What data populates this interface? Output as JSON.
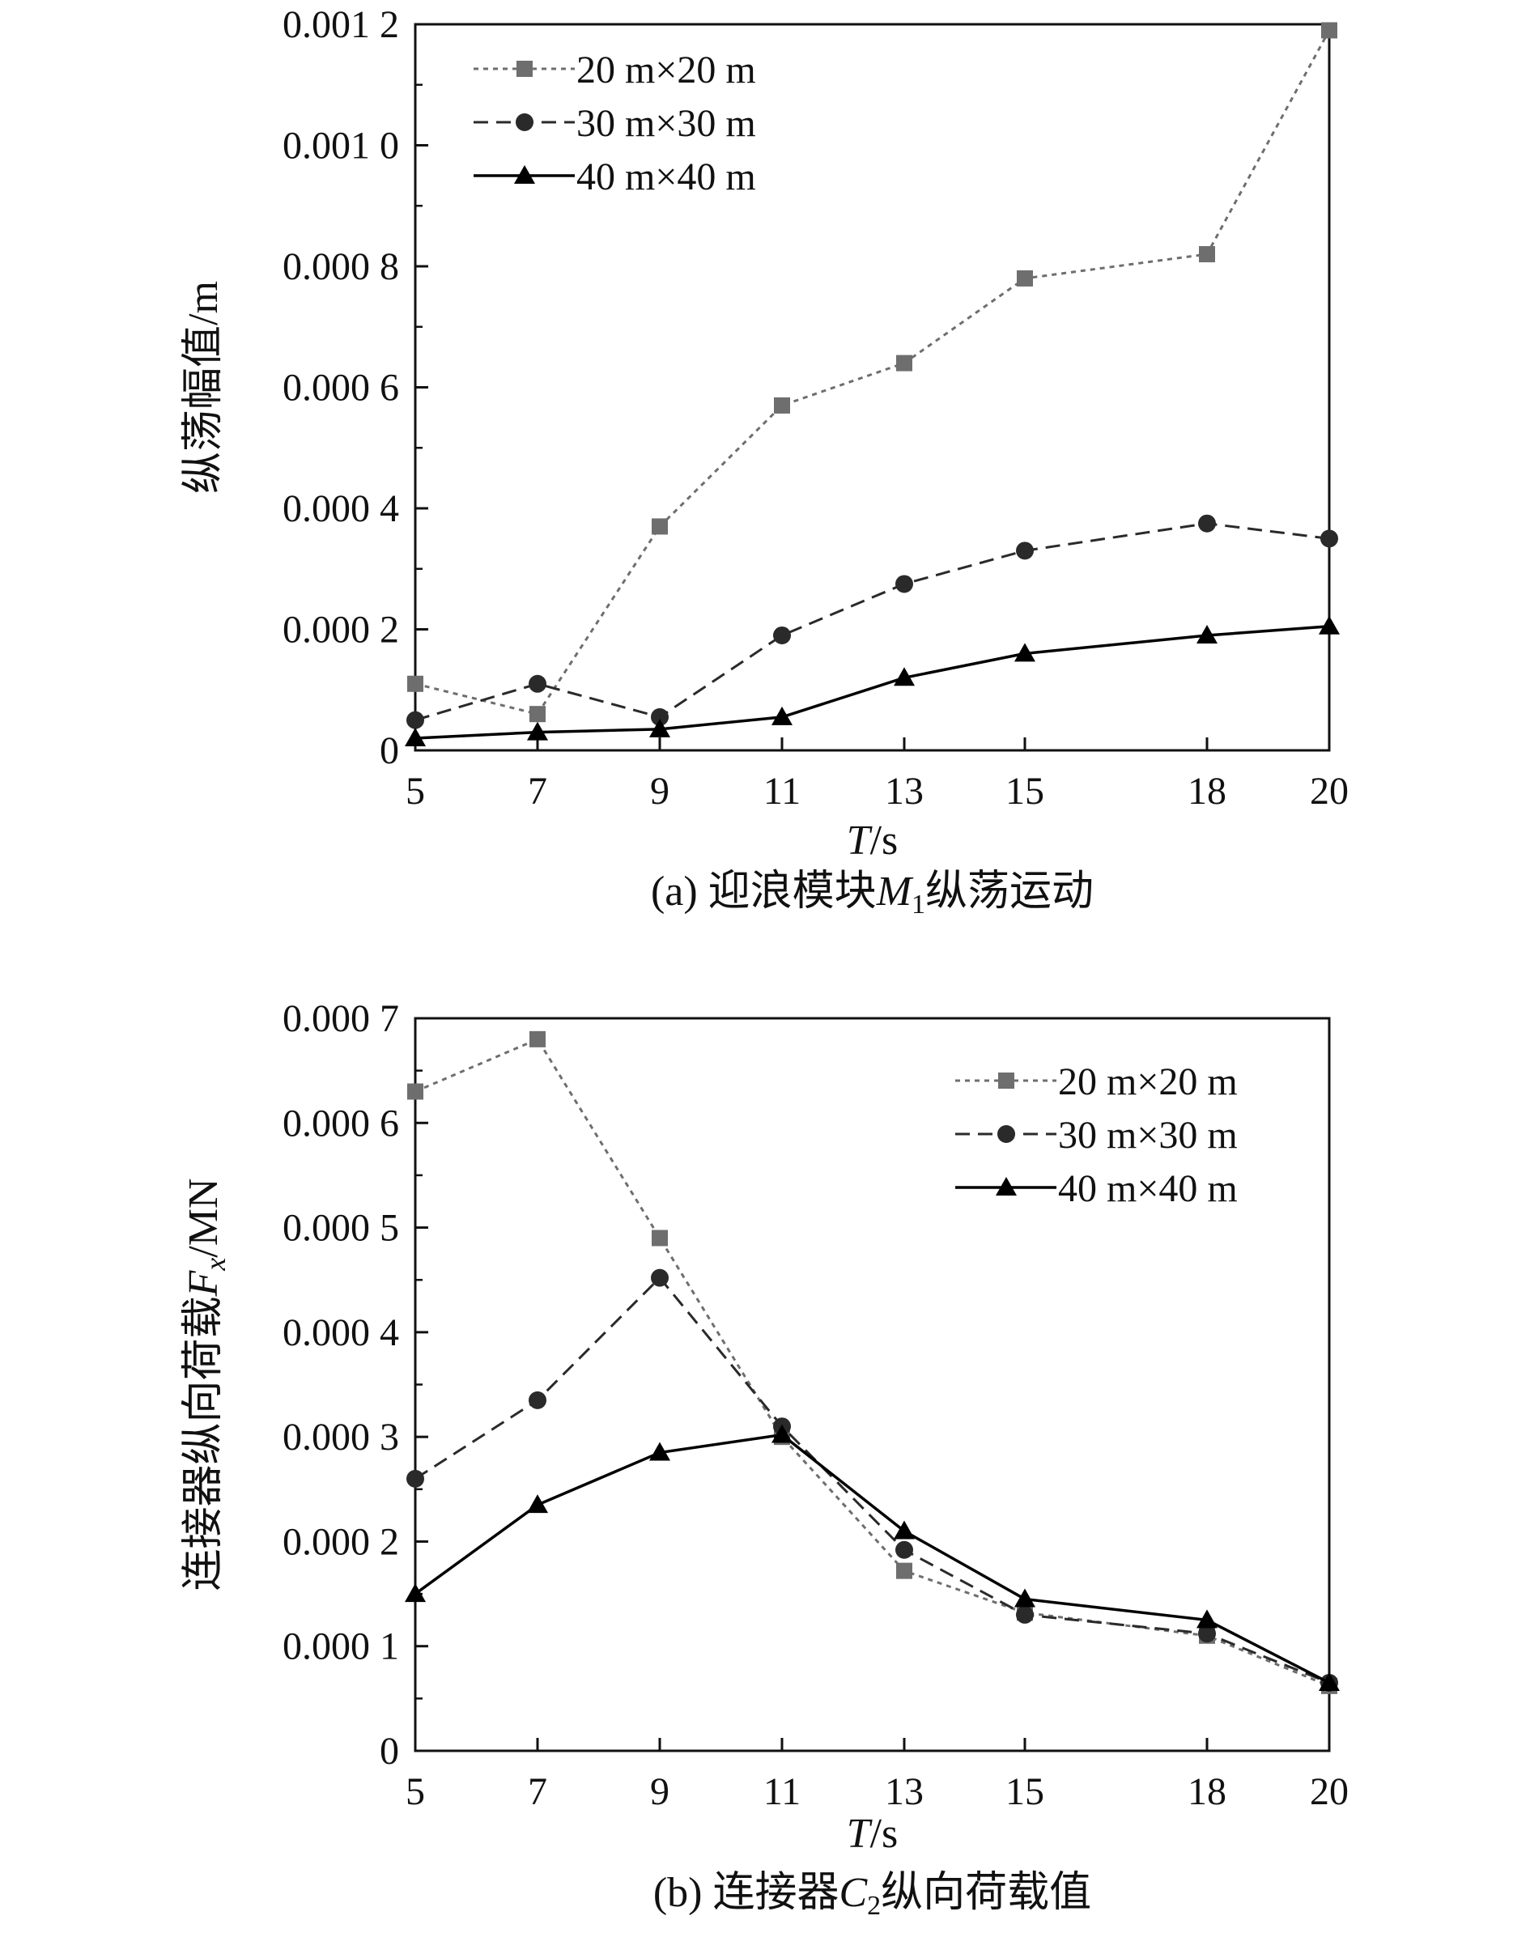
{
  "chart_data": [
    {
      "type": "line",
      "caption": "(a) 迎浪模块M1纵荡运动",
      "caption_prefix": "(a) 迎浪模块",
      "caption_italic": "M",
      "caption_sub": "1",
      "caption_suffix": "纵荡运动",
      "ylabel": "纵荡幅值/m",
      "xlabel_italic": "T",
      "xlabel_rest": "/s",
      "x": [
        5,
        7,
        9,
        11,
        13,
        15,
        18,
        20
      ],
      "x_tick_labels": [
        "5",
        "7",
        "9",
        "11",
        "13",
        "15",
        "18",
        "20"
      ],
      "y_ticks": [
        0,
        0.0002,
        0.0004,
        0.0006,
        0.0008,
        0.001,
        0.0012
      ],
      "y_tick_labels": [
        "0",
        "0.000 2",
        "0.000 4",
        "0.000 6",
        "0.000 8",
        "0.001 0",
        "0.001 2"
      ],
      "ylim": [
        0,
        0.0012
      ],
      "legend_position": "top-left",
      "series": [
        {
          "name": "20 m×20 m",
          "marker": "square",
          "style": "dotted",
          "color": "#6e6e6e",
          "values": [
            0.00011,
            6e-05,
            0.00037,
            0.00057,
            0.00064,
            0.00078,
            0.00082,
            0.00119
          ]
        },
        {
          "name": "30 m×30 m",
          "marker": "circle",
          "style": "dashed",
          "color": "#2a2a2a",
          "values": [
            5e-05,
            0.00011,
            5.5e-05,
            0.00019,
            0.000275,
            0.00033,
            0.000375,
            0.00035
          ]
        },
        {
          "name": "40 m×40 m",
          "marker": "triangle",
          "style": "solid",
          "color": "#000000",
          "values": [
            2e-05,
            3e-05,
            3.5e-05,
            5.5e-05,
            0.00012,
            0.00016,
            0.00019,
            0.000205
          ]
        }
      ]
    },
    {
      "type": "line",
      "caption": "(b) 连接器C2纵向荷载值",
      "caption_prefix": "(b) 连接器",
      "caption_italic": "C",
      "caption_sub": "2",
      "caption_suffix": "纵向荷载值",
      "ylabel_prefix": "连接器纵向荷载",
      "ylabel_italic": "F",
      "ylabel_sub": "x",
      "ylabel_suffix": "/MN",
      "xlabel_italic": "T",
      "xlabel_rest": "/s",
      "x": [
        5,
        7,
        9,
        11,
        13,
        15,
        18,
        20
      ],
      "x_tick_labels": [
        "5",
        "7",
        "9",
        "11",
        "13",
        "15",
        "18",
        "20"
      ],
      "y_ticks": [
        0,
        0.0001,
        0.0002,
        0.0003,
        0.0004,
        0.0005,
        0.0006,
        0.0007
      ],
      "y_tick_labels": [
        "0",
        "0.000 1",
        "0.000 2",
        "0.000 3",
        "0.000 4",
        "0.000 5",
        "0.000 6",
        "0.000 7"
      ],
      "ylim": [
        0,
        0.0007
      ],
      "legend_position": "top-right",
      "series": [
        {
          "name": "20 m×20 m",
          "marker": "square",
          "style": "dotted",
          "color": "#6e6e6e",
          "values": [
            0.00063,
            0.00068,
            0.00049,
            0.0003,
            0.000172,
            0.000132,
            0.00011,
            6.2e-05
          ]
        },
        {
          "name": "30 m×30 m",
          "marker": "circle",
          "style": "dashed",
          "color": "#2a2a2a",
          "values": [
            0.00026,
            0.000335,
            0.000452,
            0.00031,
            0.000192,
            0.00013,
            0.000112,
            6.5e-05
          ]
        },
        {
          "name": "40 m×40 m",
          "marker": "triangle",
          "style": "solid",
          "color": "#000000",
          "values": [
            0.00015,
            0.000235,
            0.000285,
            0.000302,
            0.00021,
            0.000145,
            0.000125,
            6.5e-05
          ]
        }
      ]
    }
  ]
}
